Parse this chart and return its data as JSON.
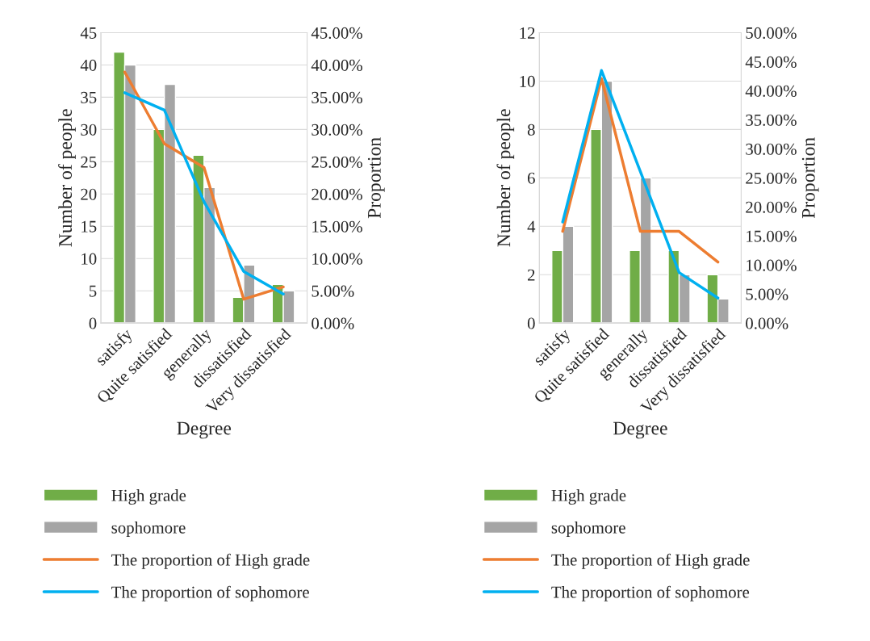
{
  "chart_data": [
    {
      "type": "bar",
      "categories": [
        "satisfy",
        "Quite satisfied",
        "generally",
        "dissatisfied",
        "Very dissatisfied"
      ],
      "xlabel": "Degree",
      "ylabel": "Number of people",
      "y2label": "Proportion",
      "ylim": [
        0,
        45
      ],
      "yticks": [
        0,
        5,
        10,
        15,
        20,
        25,
        30,
        35,
        40,
        45
      ],
      "y2lim": [
        0,
        45
      ],
      "y2ticks": [
        {
          "value": 0,
          "label": "0.00%"
        },
        {
          "value": 5,
          "label": "5.00%"
        },
        {
          "value": 10,
          "label": "10.00%"
        },
        {
          "value": 15,
          "label": "15.00%"
        },
        {
          "value": 20,
          "label": "20.00%"
        },
        {
          "value": 25,
          "label": "25.00%"
        },
        {
          "value": 30,
          "label": "30.00%"
        },
        {
          "value": 35,
          "label": "35.00%"
        },
        {
          "value": 40,
          "label": "40.00%"
        },
        {
          "value": 45,
          "label": "45.00%"
        }
      ],
      "grid": "y",
      "legend": "bottom",
      "series": [
        {
          "name": "High grade",
          "color": "#70ad47",
          "values": [
            42,
            30,
            26,
            4,
            6
          ]
        },
        {
          "name": "sophomore",
          "color": "#a5a5a5",
          "values": [
            40,
            37,
            21,
            9,
            5
          ]
        },
        {
          "name": "The proportion of High grade",
          "type": "line",
          "axis": "y2",
          "color": "#ed7d31",
          "values": [
            38.9,
            27.8,
            24.1,
            3.7,
            5.6
          ]
        },
        {
          "name": "The proportion of sophomore",
          "type": "line",
          "axis": "y2",
          "color": "#00b0f0",
          "values": [
            35.7,
            33.0,
            18.8,
            8.0,
            4.5
          ]
        }
      ]
    },
    {
      "type": "bar",
      "categories": [
        "satisfy",
        "Quite satisfied",
        "generally",
        "dissatisfied",
        "Very dissatisfied"
      ],
      "xlabel": "Degree",
      "ylabel": "Number of people",
      "y2label": "Proportion",
      "ylim": [
        0,
        12
      ],
      "yticks": [
        0,
        2,
        4,
        6,
        8,
        10,
        12
      ],
      "y2lim": [
        0,
        50
      ],
      "y2ticks": [
        {
          "value": 0,
          "label": "0.00%"
        },
        {
          "value": 5,
          "label": "5.00%"
        },
        {
          "value": 10,
          "label": "10.00%"
        },
        {
          "value": 15,
          "label": "15.00%"
        },
        {
          "value": 20,
          "label": "20.00%"
        },
        {
          "value": 25,
          "label": "25.00%"
        },
        {
          "value": 30,
          "label": "30.00%"
        },
        {
          "value": 35,
          "label": "35.00%"
        },
        {
          "value": 40,
          "label": "40.00%"
        },
        {
          "value": 45,
          "label": "45.00%"
        },
        {
          "value": 50,
          "label": "50.00%"
        }
      ],
      "grid": "y",
      "legend": "bottom",
      "series": [
        {
          "name": "High grade",
          "color": "#70ad47",
          "values": [
            3,
            8,
            3,
            3,
            2
          ]
        },
        {
          "name": "sophomore",
          "color": "#a5a5a5",
          "values": [
            4,
            10,
            6,
            2,
            1
          ]
        },
        {
          "name": "The proportion of High grade",
          "type": "line",
          "axis": "y2",
          "color": "#ed7d31",
          "values": [
            15.8,
            42.1,
            15.8,
            15.8,
            10.5
          ]
        },
        {
          "name": "The proportion of sophomore",
          "type": "line",
          "axis": "y2",
          "color": "#00b0f0",
          "values": [
            17.4,
            43.5,
            26.1,
            8.7,
            4.3
          ]
        }
      ]
    }
  ]
}
